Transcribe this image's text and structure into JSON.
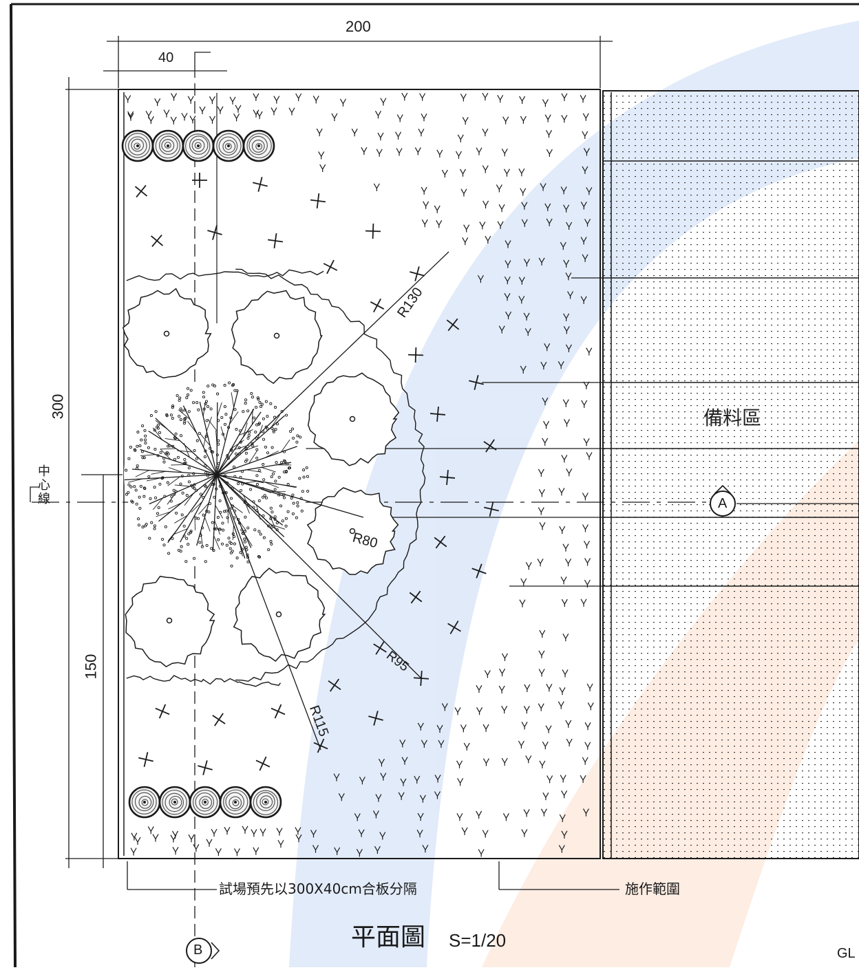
{
  "dimensions": {
    "overall_width": "200",
    "edge_strip": "40",
    "overall_length": "300",
    "half_length": "150"
  },
  "radii": {
    "outer_arc": "R130",
    "inner_arc": "R115",
    "mid_arc": "R95",
    "shrub_circle": "R80"
  },
  "labels": {
    "center_line": "中心線",
    "material_area": "備料區",
    "partition_note": "試場預先以300X40cm合板分隔",
    "work_area": "施作範圍",
    "section_a": "A",
    "section_b": "B",
    "title": "平面圖",
    "scale": "S=1/20",
    "corner_code": "GL"
  },
  "colors": {
    "line": "#1a1a1a",
    "log": "#555555",
    "watermark_blue": "#1e64d2",
    "watermark_orange": "#f07832"
  }
}
